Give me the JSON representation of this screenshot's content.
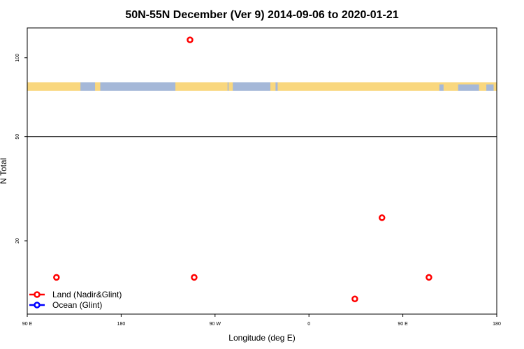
{
  "chart_data": {
    "type": "scatter",
    "title": "50N-55N December (Ver 9)   2014-09-06 to 2020-01-21",
    "xlabel": "Longitude (deg E)",
    "ylabel": "N Total",
    "x_axis": {
      "ticks": [
        {
          "value": 90,
          "label": "90 E"
        },
        {
          "value": 180,
          "label": "180"
        },
        {
          "value": 270,
          "label": "90 W"
        },
        {
          "value": 360,
          "label": "0"
        },
        {
          "value": 450,
          "label": "90 E"
        },
        {
          "value": 540,
          "label": "180"
        }
      ],
      "xlim": [
        90,
        540
      ]
    },
    "y_axis": {
      "scale": "log",
      "ticks": [
        {
          "value": 20,
          "label": "20"
        },
        {
          "value": 50,
          "label": "50"
        },
        {
          "value": 100,
          "label": "100"
        }
      ],
      "ylim": [
        10.5,
        130
      ],
      "reference_line": 50
    },
    "map_strip": {
      "land_color": "#F9D77E",
      "ocean_color": "#A5B8D8",
      "land_segments_lon": [
        [
          90,
          141
        ],
        [
          155,
          160
        ],
        [
          232,
          282
        ],
        [
          283,
          287
        ],
        [
          323,
          328
        ],
        [
          330,
          540
        ]
      ],
      "ocean_gaps_lon": [
        [
          485,
          489
        ],
        [
          503,
          523
        ],
        [
          530,
          537
        ]
      ]
    },
    "series": [
      {
        "name": "Land (Nadir&Glint)",
        "color": "#FF0000",
        "points": [
          {
            "x": 118,
            "y": 14.5
          },
          {
            "x": 246,
            "y": 117
          },
          {
            "x": 250,
            "y": 14.5
          },
          {
            "x": 404,
            "y": 12.0
          },
          {
            "x": 430,
            "y": 24.5
          },
          {
            "x": 475,
            "y": 14.5
          }
        ]
      },
      {
        "name": "Ocean (Glint)",
        "color": "#0000FF",
        "points": []
      }
    ],
    "legend_position": "bottom-left",
    "grid": false
  }
}
